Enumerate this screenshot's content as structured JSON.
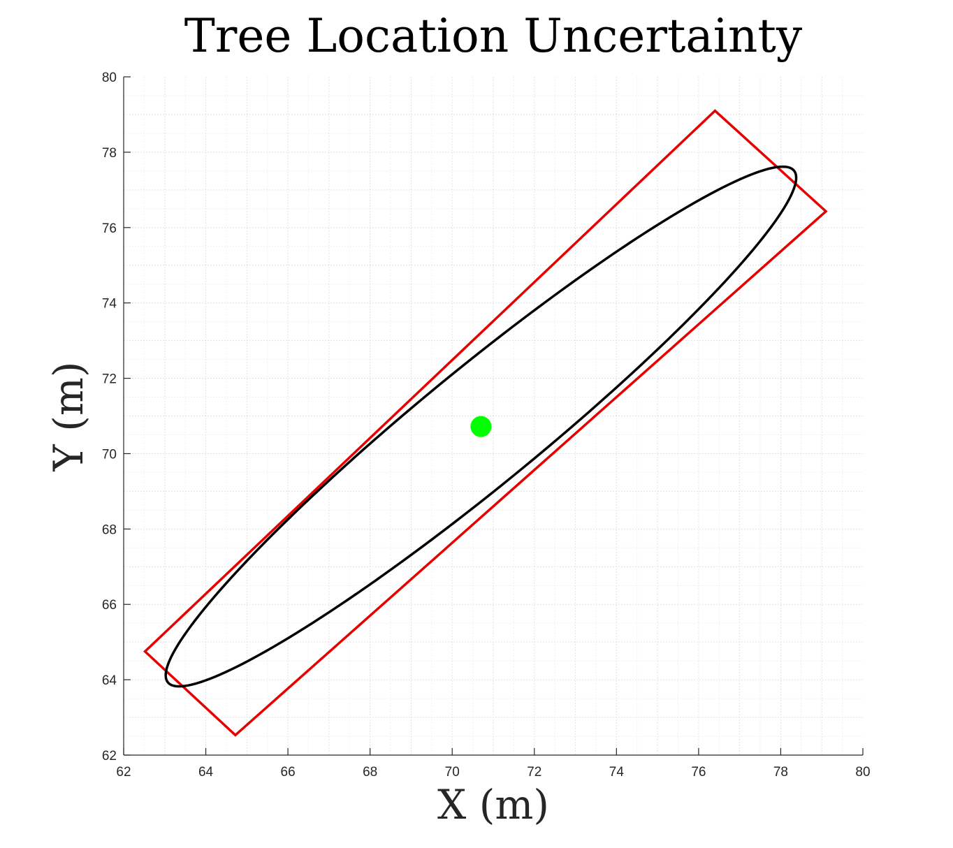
{
  "chart_data": {
    "type": "scatter",
    "title": "Tree Location Uncertainty",
    "xlabel": "X (m)",
    "ylabel": "Y (m)",
    "xlim": [
      62,
      80
    ],
    "ylim": [
      62,
      80
    ],
    "xticks": [
      "62",
      "64",
      "66",
      "68",
      "70",
      "72",
      "74",
      "76",
      "78",
      "80"
    ],
    "yticks": [
      "62",
      "64",
      "66",
      "68",
      "70",
      "72",
      "74",
      "76",
      "78",
      "80"
    ],
    "grid": "major and minor, dotted",
    "center": {
      "x": 70.7,
      "y": 70.72
    },
    "ellipse": {
      "cx": 70.7,
      "cy": 70.72,
      "semi_major": 10.21,
      "semi_minor": 1.5,
      "angle_deg": 41.8
    },
    "rectangle": {
      "corners": [
        {
          "x": 76.4,
          "y": 79.1
        },
        {
          "x": 79.1,
          "y": 76.43
        },
        {
          "x": 64.72,
          "y": 62.53
        },
        {
          "x": 62.52,
          "y": 64.75
        }
      ]
    },
    "colors": {
      "ellipse": "#000000",
      "rectangle": "#e60000",
      "center": "#00ff00",
      "axis": "#262626",
      "grid": "#d9d9d9"
    }
  }
}
